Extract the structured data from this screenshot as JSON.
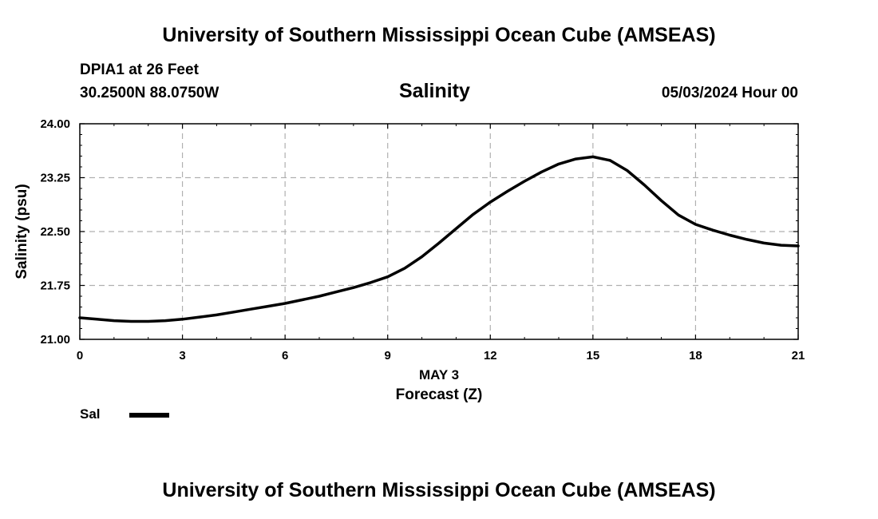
{
  "header": {
    "title": "University of Southern Mississippi Ocean Cube (AMSEAS)",
    "station": "DPIA1 at 26 Feet",
    "coords": "30.2500N  88.0750W",
    "variable": "Salinity",
    "datetime": "05/03/2024 Hour 00"
  },
  "footer": {
    "title": "University of Southern Mississippi Ocean Cube (AMSEAS)"
  },
  "legend": {
    "label": "Sal",
    "color": "#000000"
  },
  "chart_data": {
    "type": "line",
    "title": "Salinity",
    "xlabel": "Forecast (Z)",
    "xlabel_date": "MAY 3",
    "ylabel": "Salinity (psu)",
    "xlim": [
      0,
      21
    ],
    "ylim": [
      21.0,
      24.0
    ],
    "x_ticks": [
      0,
      3,
      6,
      9,
      12,
      15,
      18,
      21
    ],
    "x_tick_labels": [
      "0",
      "3",
      "6",
      "9",
      "12",
      "15",
      "18",
      "21"
    ],
    "y_ticks": [
      21.0,
      21.75,
      22.5,
      23.25,
      24.0
    ],
    "y_tick_labels": [
      "21.00",
      "21.75",
      "22.50",
      "23.25",
      "24.00"
    ],
    "grid": true,
    "series": [
      {
        "name": "Sal",
        "color": "#000000",
        "x": [
          0,
          0.5,
          1,
          1.5,
          2,
          2.5,
          3,
          3.5,
          4,
          4.5,
          5,
          5.5,
          6,
          6.5,
          7,
          7.5,
          8,
          8.5,
          9,
          9.5,
          10,
          10.5,
          11,
          11.5,
          12,
          12.5,
          13,
          13.5,
          14,
          14.5,
          15,
          15.5,
          16,
          16.5,
          17,
          17.5,
          18,
          18.5,
          19,
          19.5,
          20,
          20.5,
          21
        ],
        "values": [
          21.3,
          21.28,
          21.26,
          21.25,
          21.25,
          21.26,
          21.28,
          21.31,
          21.34,
          21.38,
          21.42,
          21.46,
          21.5,
          21.55,
          21.6,
          21.66,
          21.72,
          21.79,
          21.87,
          21.99,
          22.15,
          22.34,
          22.54,
          22.74,
          22.91,
          23.06,
          23.2,
          23.33,
          23.44,
          23.51,
          23.54,
          23.49,
          23.35,
          23.15,
          22.93,
          22.73,
          22.6,
          22.52,
          22.45,
          22.39,
          22.34,
          22.31,
          22.3
        ]
      }
    ]
  }
}
